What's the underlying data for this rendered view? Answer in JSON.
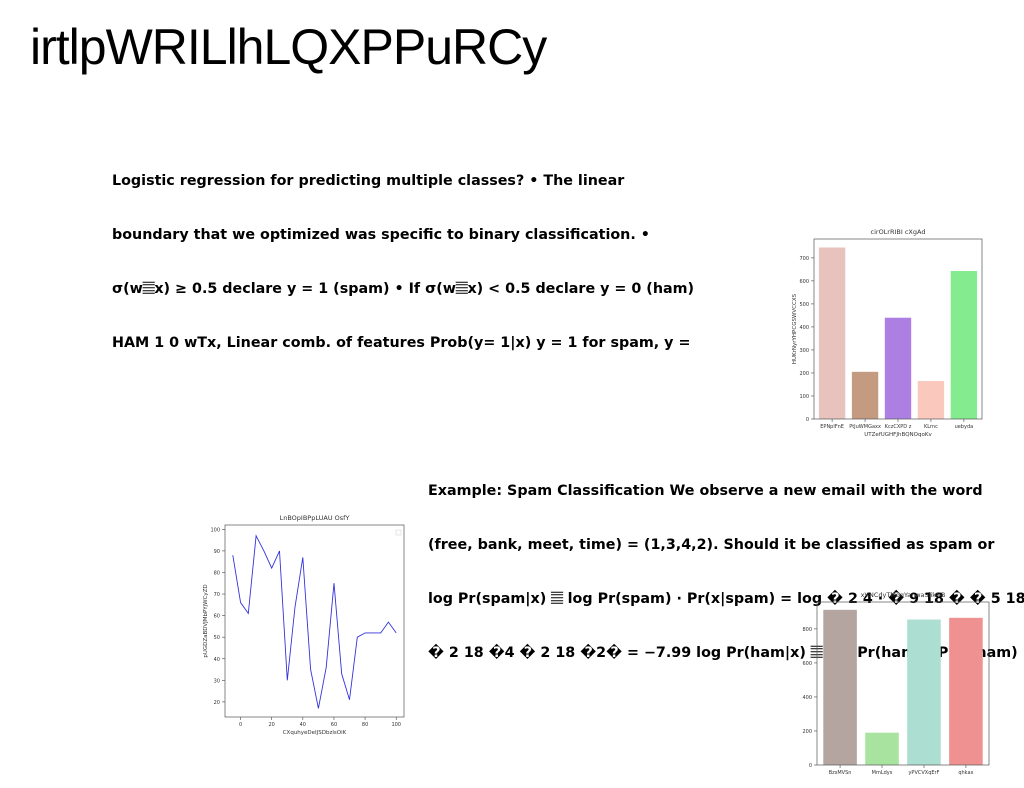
{
  "slide": {
    "title": "irtlpWRILlhLQXPPuRCy",
    "paragraph1": [
      "Logistic regression for predicting multiple classes? • The linear",
      "boundary that we optimized was specific to binary classification. •",
      "σ(w𝄚x) ≥ 0.5 declare y = 1 (spam) • If σ(w𝄚x) < 0.5 declare y = 0 (ham)",
      "HAM 1 0 wTx, Linear comb. of features Prob(y= 1|x) y = 1 for spam, y ="
    ],
    "paragraph2": [
      "Example: Spam Classification We observe a new email with the word",
      "(free, bank, meet, time) = (1,3,4,2). Should it be classified as spam or",
      "log Pr(spam|x) 𝄚 log Pr(spam) · Pr(x|spam) = log � 2 4 · � 9 18 � � 5 18",
      "� 2 18 �4 � 2 18 �2� = −7.99 log Pr(ham|x) 𝄚 log Pr(ham) · Pr(x|ham) ="
    ]
  },
  "chart_data": [
    {
      "type": "bar",
      "title": "cirOLrRIBI cXgAd",
      "xlabel": "UTZefUGHFJhBQNOqoKv",
      "ylabel": "HUKrNyrYHPCGSWVCCXS",
      "categories": [
        "EPNplFnE",
        "PtJuWMGaxx",
        "KczCXPD z",
        "KLrnc",
        "uebyda"
      ],
      "values": [
        745,
        205,
        440,
        165,
        643
      ],
      "colors": [
        "#e8c2bc",
        "#c49a80",
        "#ae7fe3",
        "#fac8bd",
        "#84eb8f"
      ],
      "ylim": [
        0,
        782
      ],
      "yticks": [
        0,
        100,
        200,
        300,
        400,
        500,
        600,
        700
      ]
    },
    {
      "type": "line",
      "title": "LnBOpIBPpLUAU OsfY",
      "xlabel": "CXquhyeDeIJSDbzlsOiK",
      "ylabel": "pUGDZaBDVJMbPYjWCyZD",
      "x": [
        -5,
        0,
        5,
        10,
        15,
        20,
        25,
        30,
        35,
        40,
        45,
        50,
        55,
        60,
        65,
        70,
        75,
        80,
        85,
        90,
        95,
        100
      ],
      "y": [
        88,
        66,
        61,
        97,
        90,
        82,
        90,
        30,
        64,
        87,
        35,
        17,
        36,
        75,
        33,
        21,
        50,
        52,
        52,
        52,
        57,
        52
      ],
      "color": "#3333dd",
      "xlim": [
        -10,
        105
      ],
      "ylim": [
        13,
        102
      ],
      "xticks": [
        0,
        20,
        40,
        60,
        80,
        100
      ],
      "yticks": [
        20,
        30,
        40,
        50,
        60,
        70,
        80,
        90,
        100
      ]
    },
    {
      "type": "bar",
      "title": "xVNCdyTMogYanwaSlikNB",
      "xlabel": "",
      "ylabel": "",
      "categories": [
        "BzsMVSn",
        "MmLdys",
        "yPVCVXqErF",
        "qhkax"
      ],
      "values": [
        912,
        190,
        855,
        865
      ],
      "colors": [
        "#b4a5a1",
        "#a9e3a0",
        "#acdfd2",
        "#ef9190"
      ],
      "ylim": [
        0,
        958
      ],
      "yticks": [
        0,
        200,
        400,
        600,
        800
      ]
    }
  ]
}
